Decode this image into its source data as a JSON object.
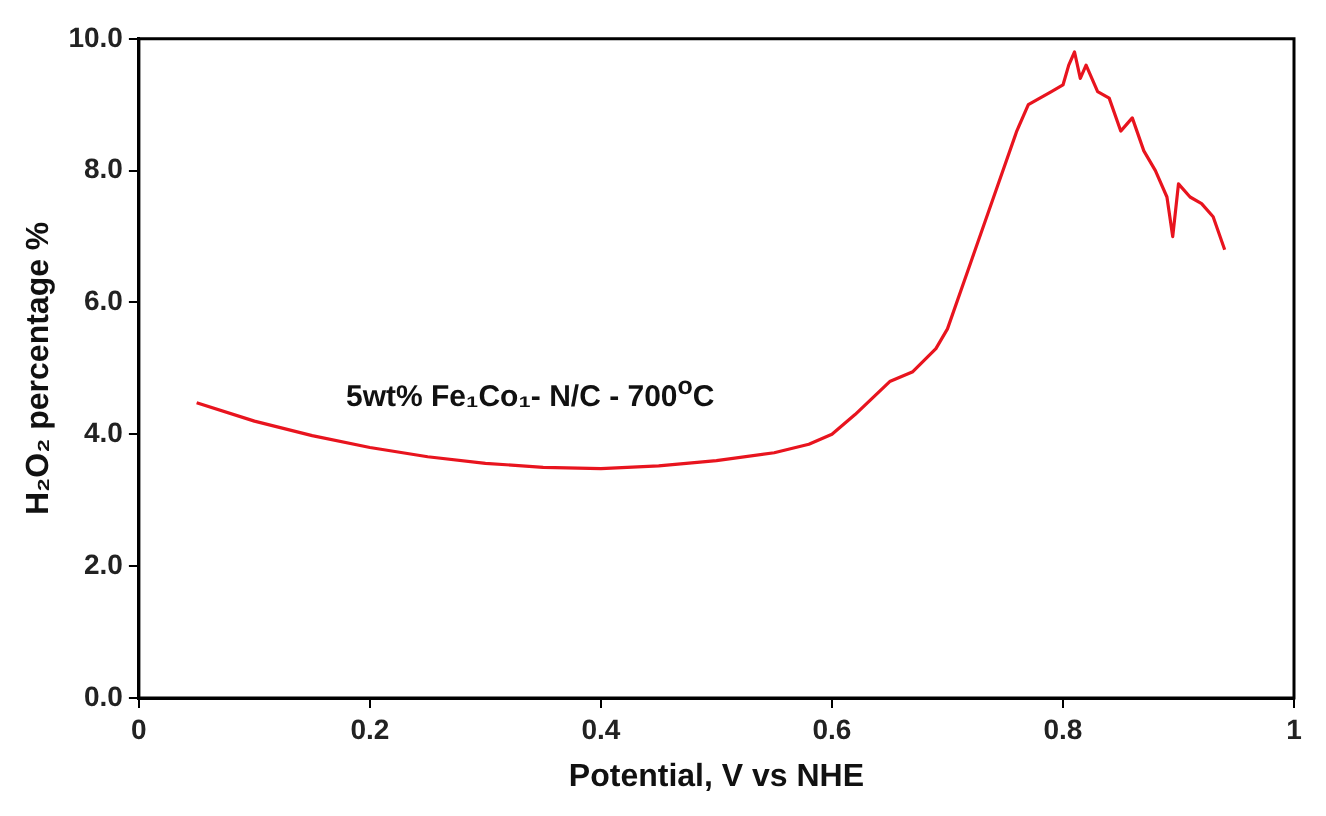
{
  "chart_data": {
    "type": "line",
    "xlabel": "Potential, V vs NHE",
    "ylabel": "H₂O₂ percentage %",
    "annotations": [
      "5wt% Fe₁Co₁- N/C - 700$^{o}$C"
    ],
    "x": [
      0.05,
      0.1,
      0.15,
      0.2,
      0.25,
      0.3,
      0.35,
      0.4,
      0.45,
      0.5,
      0.55,
      0.58,
      0.6,
      0.62,
      0.65,
      0.67,
      0.69,
      0.7,
      0.72,
      0.74,
      0.76,
      0.77,
      0.78,
      0.79,
      0.8,
      0.805,
      0.81,
      0.815,
      0.82,
      0.83,
      0.84,
      0.85,
      0.86,
      0.87,
      0.88,
      0.89,
      0.895,
      0.9,
      0.91,
      0.92,
      0.93,
      0.94
    ],
    "series": [
      {
        "color": "#e8141e",
        "values": [
          4.48,
          4.2,
          3.98,
          3.8,
          3.66,
          3.56,
          3.5,
          3.48,
          3.52,
          3.6,
          3.72,
          3.85,
          4.0,
          4.3,
          4.8,
          4.95,
          5.3,
          5.6,
          6.6,
          7.6,
          8.6,
          9.0,
          9.1,
          9.2,
          9.3,
          9.6,
          9.8,
          9.4,
          9.6,
          9.2,
          9.1,
          8.6,
          8.8,
          8.3,
          8.0,
          7.6,
          7.0,
          7.8,
          7.6,
          7.5,
          7.3,
          6.8
        ]
      }
    ],
    "xlim": [
      0,
      1
    ],
    "ylim": [
      0,
      10
    ],
    "xticks": [
      0,
      0.2,
      0.4,
      0.6,
      0.8,
      1
    ],
    "yticks": [
      {
        "value": 0,
        "label": "0.0"
      },
      {
        "value": 2,
        "label": "2.0"
      },
      {
        "value": 4,
        "label": "4.0"
      },
      {
        "value": 6,
        "label": "6.0"
      },
      {
        "value": 8,
        "label": "8.0"
      },
      {
        "value": 10,
        "label": "10.0"
      }
    ],
    "grid": false,
    "legend": false,
    "marker": "none",
    "line_style": "solid"
  }
}
